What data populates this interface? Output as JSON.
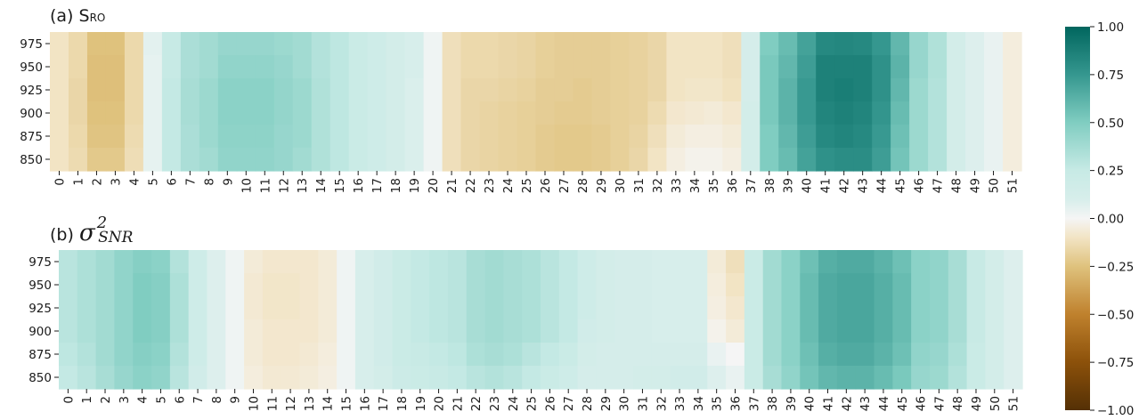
{
  "chart_data": {
    "type": "heatmap",
    "colormap": "BrBG",
    "colorbar": {
      "range": [
        -1.0,
        1.0
      ],
      "ticks": [
        1.0,
        0.75,
        0.5,
        0.25,
        0.0,
        -0.25,
        -0.5,
        -0.75,
        -1.0
      ],
      "tick_labels": [
        "1.00",
        "0.75",
        "0.50",
        "0.25",
        "0.00",
        "−0.25",
        "−0.50",
        "−0.75",
        "−1.00"
      ]
    },
    "panels": [
      {
        "title_prefix": "(a) S",
        "title_sub": "RO",
        "rows": [
          "975",
          "950",
          "925",
          "900",
          "875",
          "850"
        ],
        "columns": [
          "0",
          "1",
          "2",
          "3",
          "4",
          "5",
          "6",
          "7",
          "8",
          "9",
          "10",
          "11",
          "12",
          "13",
          "14",
          "15",
          "16",
          "17",
          "18",
          "19",
          "20",
          "21",
          "22",
          "23",
          "24",
          "25",
          "26",
          "27",
          "28",
          "29",
          "30",
          "31",
          "32",
          "33",
          "34",
          "35",
          "36",
          "37",
          "38",
          "39",
          "40",
          "41",
          "42",
          "43",
          "44",
          "45",
          "46",
          "47",
          "48",
          "49",
          "50",
          "51"
        ],
        "values": [
          [
            -0.1,
            -0.15,
            -0.25,
            -0.25,
            -0.15,
            0.06,
            0.25,
            0.35,
            0.38,
            0.42,
            0.42,
            0.42,
            0.4,
            0.38,
            0.32,
            0.28,
            0.22,
            0.18,
            0.14,
            0.1,
            0.02,
            -0.12,
            -0.15,
            -0.15,
            -0.16,
            -0.17,
            -0.19,
            -0.2,
            -0.2,
            -0.2,
            -0.19,
            -0.18,
            -0.16,
            -0.1,
            -0.1,
            -0.1,
            -0.12,
            0.12,
            0.5,
            0.58,
            0.7,
            0.82,
            0.83,
            0.82,
            0.75,
            0.6,
            0.42,
            0.33,
            0.14,
            0.08,
            0.04,
            -0.05
          ],
          [
            -0.1,
            -0.15,
            -0.26,
            -0.26,
            -0.15,
            0.05,
            0.25,
            0.35,
            0.38,
            0.44,
            0.44,
            0.44,
            0.42,
            0.38,
            0.32,
            0.28,
            0.22,
            0.18,
            0.14,
            0.1,
            0.02,
            -0.12,
            -0.15,
            -0.15,
            -0.16,
            -0.17,
            -0.19,
            -0.2,
            -0.2,
            -0.2,
            -0.19,
            -0.18,
            -0.16,
            -0.1,
            -0.1,
            -0.1,
            -0.12,
            0.12,
            0.52,
            0.6,
            0.72,
            0.86,
            0.86,
            0.86,
            0.78,
            0.62,
            0.42,
            0.33,
            0.14,
            0.08,
            0.04,
            -0.05
          ],
          [
            -0.1,
            -0.16,
            -0.26,
            -0.26,
            -0.15,
            0.05,
            0.26,
            0.36,
            0.4,
            0.46,
            0.46,
            0.46,
            0.43,
            0.4,
            0.33,
            0.28,
            0.22,
            0.18,
            0.14,
            0.09,
            0.02,
            -0.12,
            -0.16,
            -0.16,
            -0.17,
            -0.18,
            -0.2,
            -0.2,
            -0.21,
            -0.2,
            -0.19,
            -0.18,
            -0.16,
            -0.1,
            -0.09,
            -0.09,
            -0.11,
            0.12,
            0.52,
            0.62,
            0.74,
            0.86,
            0.88,
            0.86,
            0.78,
            0.6,
            0.4,
            0.32,
            0.14,
            0.08,
            0.04,
            -0.05
          ],
          [
            -0.1,
            -0.16,
            -0.25,
            -0.25,
            -0.15,
            0.05,
            0.26,
            0.36,
            0.4,
            0.46,
            0.46,
            0.46,
            0.43,
            0.4,
            0.33,
            0.28,
            0.22,
            0.18,
            0.14,
            0.09,
            0.02,
            -0.12,
            -0.16,
            -0.17,
            -0.18,
            -0.19,
            -0.2,
            -0.21,
            -0.21,
            -0.2,
            -0.19,
            -0.18,
            -0.14,
            -0.08,
            -0.07,
            -0.06,
            -0.08,
            0.14,
            0.52,
            0.62,
            0.74,
            0.84,
            0.86,
            0.84,
            0.76,
            0.58,
            0.4,
            0.32,
            0.14,
            0.08,
            0.04,
            -0.05
          ],
          [
            -0.1,
            -0.15,
            -0.24,
            -0.24,
            -0.14,
            0.05,
            0.26,
            0.35,
            0.4,
            0.45,
            0.45,
            0.45,
            0.42,
            0.4,
            0.33,
            0.28,
            0.22,
            0.18,
            0.14,
            0.09,
            0.02,
            -0.12,
            -0.16,
            -0.17,
            -0.18,
            -0.19,
            -0.21,
            -0.22,
            -0.22,
            -0.21,
            -0.19,
            -0.17,
            -0.12,
            -0.06,
            -0.04,
            -0.04,
            -0.06,
            0.14,
            0.5,
            0.6,
            0.72,
            0.82,
            0.84,
            0.82,
            0.74,
            0.56,
            0.4,
            0.32,
            0.14,
            0.08,
            0.04,
            -0.05
          ],
          [
            -0.1,
            -0.14,
            -0.22,
            -0.22,
            -0.13,
            0.05,
            0.26,
            0.35,
            0.38,
            0.44,
            0.44,
            0.44,
            0.42,
            0.38,
            0.33,
            0.28,
            0.22,
            0.18,
            0.14,
            0.09,
            0.02,
            -0.12,
            -0.16,
            -0.17,
            -0.18,
            -0.19,
            -0.21,
            -0.22,
            -0.22,
            -0.21,
            -0.19,
            -0.16,
            -0.1,
            -0.04,
            -0.02,
            -0.02,
            -0.04,
            0.14,
            0.5,
            0.58,
            0.7,
            0.78,
            0.8,
            0.8,
            0.72,
            0.54,
            0.4,
            0.32,
            0.14,
            0.08,
            0.04,
            -0.05
          ]
        ]
      },
      {
        "title_prefix": "(b) ",
        "title_sigma": "σ",
        "title_sup": "2",
        "title_sub": "SNR",
        "rows": [
          "975",
          "950",
          "925",
          "900",
          "875",
          "850"
        ],
        "columns": [
          "0",
          "1",
          "2",
          "3",
          "4",
          "5",
          "6",
          "7",
          "8",
          "9",
          "10",
          "11",
          "12",
          "13",
          "14",
          "15",
          "16",
          "17",
          "18",
          "19",
          "20",
          "21",
          "22",
          "23",
          "24",
          "25",
          "26",
          "27",
          "28",
          "29",
          "30",
          "31",
          "32",
          "33",
          "34",
          "35",
          "36",
          "37",
          "38",
          "39",
          "40",
          "41",
          "42",
          "43",
          "44",
          "45",
          "46",
          "47",
          "48",
          "49",
          "50",
          "51"
        ],
        "values": [
          [
            0.3,
            0.34,
            0.38,
            0.44,
            0.48,
            0.46,
            0.32,
            0.18,
            0.08,
            0.02,
            -0.06,
            -0.08,
            -0.08,
            -0.08,
            -0.06,
            0.02,
            0.1,
            0.16,
            0.22,
            0.26,
            0.28,
            0.3,
            0.36,
            0.38,
            0.36,
            0.34,
            0.3,
            0.26,
            0.18,
            0.14,
            0.12,
            0.12,
            0.1,
            0.1,
            0.1,
            -0.06,
            -0.12,
            0.22,
            0.38,
            0.46,
            0.56,
            0.64,
            0.66,
            0.66,
            0.62,
            0.56,
            0.46,
            0.44,
            0.36,
            0.24,
            0.14,
            0.08
          ],
          [
            0.3,
            0.34,
            0.38,
            0.44,
            0.5,
            0.48,
            0.34,
            0.18,
            0.08,
            0.02,
            -0.07,
            -0.09,
            -0.09,
            -0.08,
            -0.06,
            0.02,
            0.1,
            0.16,
            0.22,
            0.26,
            0.28,
            0.3,
            0.36,
            0.38,
            0.36,
            0.34,
            0.3,
            0.26,
            0.18,
            0.14,
            0.12,
            0.12,
            0.1,
            0.1,
            0.1,
            -0.05,
            -0.1,
            0.22,
            0.38,
            0.46,
            0.58,
            0.66,
            0.68,
            0.68,
            0.64,
            0.58,
            0.46,
            0.44,
            0.36,
            0.24,
            0.14,
            0.08
          ],
          [
            0.3,
            0.34,
            0.38,
            0.44,
            0.5,
            0.48,
            0.34,
            0.18,
            0.08,
            0.02,
            -0.07,
            -0.09,
            -0.09,
            -0.08,
            -0.06,
            0.02,
            0.1,
            0.16,
            0.22,
            0.26,
            0.28,
            0.3,
            0.36,
            0.38,
            0.36,
            0.34,
            0.3,
            0.26,
            0.18,
            0.14,
            0.12,
            0.12,
            0.1,
            0.1,
            0.1,
            -0.04,
            -0.08,
            0.22,
            0.38,
            0.46,
            0.58,
            0.66,
            0.68,
            0.68,
            0.64,
            0.58,
            0.46,
            0.44,
            0.36,
            0.24,
            0.14,
            0.08
          ],
          [
            0.3,
            0.34,
            0.38,
            0.44,
            0.5,
            0.48,
            0.34,
            0.18,
            0.08,
            0.02,
            -0.06,
            -0.08,
            -0.08,
            -0.08,
            -0.06,
            0.02,
            0.1,
            0.16,
            0.22,
            0.26,
            0.28,
            0.3,
            0.36,
            0.38,
            0.36,
            0.34,
            0.3,
            0.26,
            0.16,
            0.14,
            0.12,
            0.12,
            0.1,
            0.1,
            0.1,
            -0.02,
            -0.06,
            0.22,
            0.38,
            0.46,
            0.58,
            0.66,
            0.68,
            0.68,
            0.64,
            0.58,
            0.46,
            0.44,
            0.36,
            0.24,
            0.14,
            0.08
          ],
          [
            0.28,
            0.32,
            0.38,
            0.44,
            0.48,
            0.46,
            0.32,
            0.18,
            0.08,
            0.02,
            -0.06,
            -0.08,
            -0.08,
            -0.07,
            -0.05,
            0.02,
            0.1,
            0.16,
            0.22,
            0.24,
            0.26,
            0.28,
            0.34,
            0.36,
            0.34,
            0.3,
            0.26,
            0.22,
            0.14,
            0.12,
            0.12,
            0.12,
            0.12,
            0.12,
            0.12,
            0.04,
            0.0,
            0.22,
            0.38,
            0.46,
            0.56,
            0.64,
            0.66,
            0.66,
            0.62,
            0.56,
            0.44,
            0.42,
            0.34,
            0.22,
            0.14,
            0.08
          ],
          [
            0.26,
            0.3,
            0.36,
            0.42,
            0.46,
            0.44,
            0.3,
            0.16,
            0.08,
            0.02,
            -0.05,
            -0.07,
            -0.07,
            -0.06,
            -0.04,
            0.02,
            0.1,
            0.14,
            0.2,
            0.22,
            0.24,
            0.26,
            0.3,
            0.32,
            0.3,
            0.26,
            0.22,
            0.18,
            0.12,
            0.12,
            0.12,
            0.14,
            0.14,
            0.16,
            0.16,
            0.08,
            0.04,
            0.22,
            0.36,
            0.44,
            0.54,
            0.6,
            0.62,
            0.62,
            0.58,
            0.52,
            0.42,
            0.4,
            0.32,
            0.22,
            0.14,
            0.08
          ]
        ]
      }
    ]
  }
}
